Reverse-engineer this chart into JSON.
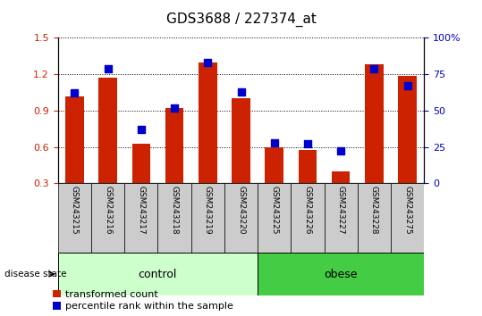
{
  "title": "GDS3688 / 227374_at",
  "samples": [
    "GSM243215",
    "GSM243216",
    "GSM243217",
    "GSM243218",
    "GSM243219",
    "GSM243220",
    "GSM243225",
    "GSM243226",
    "GSM243227",
    "GSM243228",
    "GSM243275"
  ],
  "transformed_count": [
    1.02,
    1.17,
    0.63,
    0.92,
    1.3,
    1.0,
    0.6,
    0.575,
    0.4,
    1.28,
    1.19
  ],
  "percentile_rank": [
    62,
    79,
    37,
    52,
    83,
    63,
    28,
    27,
    22,
    79,
    67
  ],
  "ylim_left": [
    0.3,
    1.5
  ],
  "ylim_right": [
    0,
    100
  ],
  "yticks_left": [
    0.3,
    0.6,
    0.9,
    1.2,
    1.5
  ],
  "yticks_right": [
    0,
    25,
    50,
    75,
    100
  ],
  "ytick_labels_right": [
    "0",
    "25",
    "50",
    "75",
    "100%"
  ],
  "bar_color": "#cc2200",
  "dot_color": "#0000cc",
  "control_group": [
    0,
    1,
    2,
    3,
    4,
    5
  ],
  "obese_group": [
    6,
    7,
    8,
    9,
    10
  ],
  "control_label": "control",
  "obese_label": "obese",
  "disease_state_label": "disease state",
  "legend_red": "transformed count",
  "legend_blue": "percentile rank within the sample",
  "control_color": "#ccffcc",
  "obese_color": "#44cc44",
  "label_area_color": "#cccccc",
  "bar_width": 0.55,
  "dot_size": 40,
  "title_fontsize": 11,
  "tick_fontsize": 8,
  "label_fontsize": 8,
  "legend_fontsize": 8
}
